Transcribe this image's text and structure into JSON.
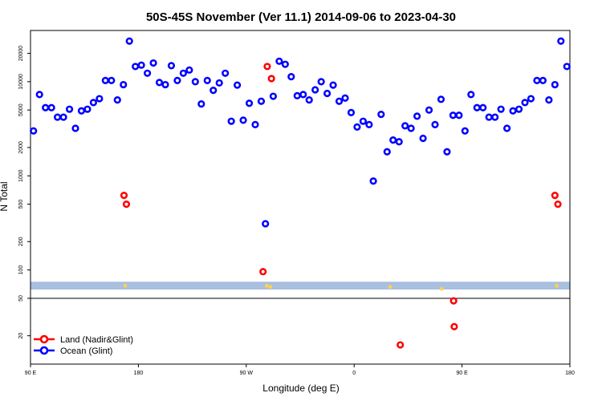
{
  "chart_data": {
    "type": "scatter",
    "title": "50S-45S November (Ver 11.1)   2014-09-06 to 2023-04-30",
    "xlabel": "Longitude (deg E)",
    "ylabel": "N Total",
    "x_ticks": [
      {
        "value": 90,
        "label": "90 E"
      },
      {
        "value": 180,
        "label": "180"
      },
      {
        "value": 270,
        "label": "90 W"
      },
      {
        "value": 360,
        "label": "0"
      },
      {
        "value": 450,
        "label": "90 E"
      },
      {
        "value": 540,
        "label": "180"
      }
    ],
    "xlim": [
      90,
      540
    ],
    "y_scale": "log",
    "ylim": [
      10,
      35000
    ],
    "y_ticks": [
      {
        "value": 20,
        "label": "20"
      },
      {
        "value": 50,
        "label": "50"
      },
      {
        "value": 100,
        "label": "100"
      },
      {
        "value": 200,
        "label": "200"
      },
      {
        "value": 500,
        "label": "500"
      },
      {
        "value": 1000,
        "label": "1000"
      },
      {
        "value": 2000,
        "label": "2000"
      },
      {
        "value": 5000,
        "label": "5000"
      },
      {
        "value": 10000,
        "label": "10000"
      },
      {
        "value": 20000,
        "label": "20000"
      }
    ],
    "divider_y": 50,
    "band_y": [
      62,
      75
    ],
    "colors": {
      "land": "#ff0000",
      "ocean": "#0000ff",
      "band": "#a8bfe0",
      "yellow": "#ffd24d"
    },
    "legend": {
      "placement": "bottom-left",
      "entries": [
        {
          "name": "Land (Nadir&Glint)",
          "color": "#ff0000"
        },
        {
          "name": "Ocean (Glint)",
          "color": "#0000ff"
        }
      ]
    },
    "series": [
      {
        "name": "Ocean (Glint)",
        "color": "#0000ff",
        "points": [
          [
            92.5,
            3000
          ],
          [
            97.5,
            7300
          ],
          [
            102.5,
            5300
          ],
          [
            107.5,
            5300
          ],
          [
            112.5,
            4200
          ],
          [
            117.5,
            4200
          ],
          [
            122.5,
            5100
          ],
          [
            127.5,
            3200
          ],
          [
            132.5,
            4900
          ],
          [
            137.5,
            5100
          ],
          [
            142.5,
            6000
          ],
          [
            147.5,
            6600
          ],
          [
            152.5,
            10300
          ],
          [
            157.5,
            10300
          ],
          [
            162.5,
            6400
          ],
          [
            167.5,
            9300
          ],
          [
            172.5,
            27000
          ],
          [
            177.5,
            14500
          ],
          [
            182.5,
            15000
          ],
          [
            187.5,
            12300
          ],
          [
            192.5,
            15800
          ],
          [
            197.5,
            9800
          ],
          [
            202.5,
            9300
          ],
          [
            207.5,
            14800
          ],
          [
            212.5,
            10300
          ],
          [
            217.5,
            12300
          ],
          [
            222.5,
            13300
          ],
          [
            227.5,
            10000
          ],
          [
            232.5,
            5800
          ],
          [
            237.5,
            10300
          ],
          [
            242.5,
            8100
          ],
          [
            247.5,
            9700
          ],
          [
            252.5,
            12300
          ],
          [
            257.5,
            3800
          ],
          [
            262.5,
            9200
          ],
          [
            267.5,
            3900
          ],
          [
            272.5,
            5900
          ],
          [
            277.5,
            3500
          ],
          [
            282.5,
            6200
          ],
          [
            286.0,
            310
          ],
          [
            292.5,
            7000
          ],
          [
            297.5,
            16500
          ],
          [
            302.5,
            15300
          ],
          [
            307.5,
            11300
          ],
          [
            312.5,
            7100
          ],
          [
            317.5,
            7300
          ],
          [
            322.5,
            6400
          ],
          [
            327.5,
            8200
          ],
          [
            332.5,
            10000
          ],
          [
            337.5,
            7500
          ],
          [
            342.5,
            9200
          ],
          [
            347.5,
            6200
          ],
          [
            352.5,
            6700
          ],
          [
            357.5,
            4700
          ],
          [
            362.5,
            3300
          ],
          [
            367.5,
            3800
          ],
          [
            372.5,
            3500
          ],
          [
            376.0,
            880
          ],
          [
            382.5,
            4500
          ],
          [
            387.5,
            1800
          ],
          [
            392.5,
            2400
          ],
          [
            397.5,
            2300
          ],
          [
            402.5,
            3400
          ],
          [
            407.5,
            3200
          ],
          [
            412.5,
            4300
          ],
          [
            417.5,
            2500
          ],
          [
            422.5,
            5000
          ],
          [
            427.5,
            3500
          ],
          [
            432.5,
            6500
          ],
          [
            437.5,
            1800
          ],
          [
            442.5,
            4400
          ],
          [
            447.5,
            4400
          ],
          [
            452.5,
            3000
          ],
          [
            457.5,
            7300
          ],
          [
            462.5,
            5300
          ],
          [
            467.5,
            5300
          ],
          [
            472.5,
            4200
          ],
          [
            477.5,
            4200
          ],
          [
            482.5,
            5100
          ],
          [
            487.5,
            3200
          ],
          [
            492.5,
            4900
          ],
          [
            497.5,
            5100
          ],
          [
            502.5,
            6000
          ],
          [
            507.5,
            6600
          ],
          [
            512.5,
            10300
          ],
          [
            517.5,
            10300
          ],
          [
            522.5,
            6400
          ],
          [
            527.5,
            9300
          ],
          [
            532.5,
            27000
          ],
          [
            537.5,
            14500
          ]
        ]
      },
      {
        "name": "Land (Nadir&Glint)",
        "color": "#ff0000",
        "points": [
          [
            168.0,
            620
          ],
          [
            170.0,
            500
          ],
          [
            284.0,
            96
          ],
          [
            287.5,
            14500
          ],
          [
            291.0,
            10800
          ],
          [
            398.5,
            16
          ],
          [
            443.0,
            47
          ],
          [
            443.5,
            25
          ],
          [
            527.5,
            620
          ],
          [
            530.0,
            500
          ]
        ]
      }
    ],
    "yellow_markers": [
      [
        169.0,
        68
      ],
      [
        287.0,
        68
      ],
      [
        290.0,
        66
      ],
      [
        529.0,
        68
      ],
      [
        390.0,
        66
      ],
      [
        433.0,
        63
      ]
    ]
  }
}
